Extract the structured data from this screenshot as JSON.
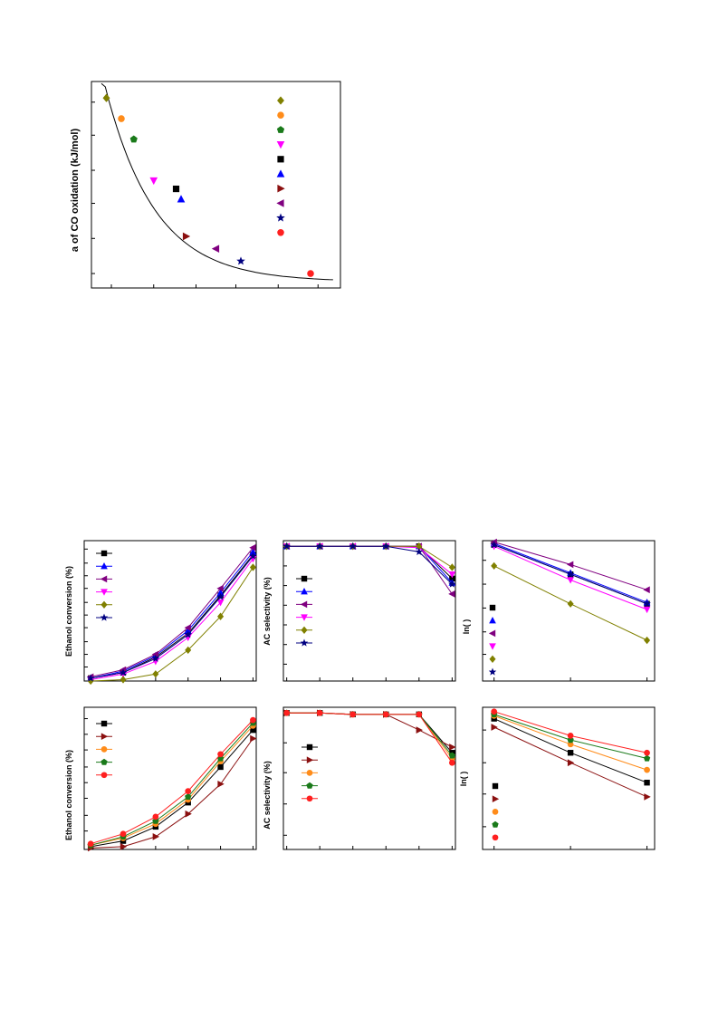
{
  "chart_data": [
    {
      "id": "top",
      "type": "scatter",
      "ylabel": "a of CO oxidation (kJ/mol)",
      "xlim": [
        0,
        1
      ],
      "ylim": [
        0,
        1
      ],
      "xticks": [
        0.08,
        0.25,
        0.42,
        0.58,
        0.75,
        0.91
      ],
      "yticks": [
        0.07,
        0.24,
        0.41,
        0.57,
        0.74,
        0.9
      ],
      "fit_curve": true,
      "points": [
        {
          "x": 0.06,
          "y": 0.92,
          "marker": "diamond",
          "color": "#808000"
        },
        {
          "x": 0.12,
          "y": 0.82,
          "marker": "circle",
          "color": "#ff8c1a"
        },
        {
          "x": 0.17,
          "y": 0.72,
          "marker": "pentagon",
          "color": "#1a7a1a"
        },
        {
          "x": 0.25,
          "y": 0.52,
          "marker": "triangle-down",
          "color": "#ff00ff"
        },
        {
          "x": 0.34,
          "y": 0.48,
          "marker": "square",
          "color": "#000000"
        },
        {
          "x": 0.36,
          "y": 0.43,
          "marker": "triangle-up",
          "color": "#0000ff"
        },
        {
          "x": 0.38,
          "y": 0.25,
          "marker": "triangle-right",
          "color": "#8b1010"
        },
        {
          "x": 0.5,
          "y": 0.19,
          "marker": "triangle-left",
          "color": "#800080"
        },
        {
          "x": 0.6,
          "y": 0.13,
          "marker": "star",
          "color": "#000080"
        },
        {
          "x": 0.88,
          "y": 0.07,
          "marker": "circle",
          "color": "#ff2020"
        }
      ],
      "legend_markers": [
        {
          "marker": "diamond",
          "color": "#808000"
        },
        {
          "marker": "circle",
          "color": "#ff8c1a"
        },
        {
          "marker": "pentagon",
          "color": "#1a7a1a"
        },
        {
          "marker": "triangle-down",
          "color": "#ff00ff"
        },
        {
          "marker": "square",
          "color": "#000000"
        },
        {
          "marker": "triangle-up",
          "color": "#0000ff"
        },
        {
          "marker": "triangle-right",
          "color": "#8b1010"
        },
        {
          "marker": "triangle-left",
          "color": "#800080"
        },
        {
          "marker": "star",
          "color": "#000080"
        },
        {
          "marker": "circle",
          "color": "#ff2020"
        }
      ]
    },
    {
      "id": "conv_a",
      "type": "line",
      "ylabel": "Ethanol conversion (%)",
      "x": [
        1,
        2,
        3,
        4,
        5,
        6
      ],
      "xlim": [
        0.8,
        6.1
      ],
      "ylim": [
        0,
        1
      ],
      "yticks": [
        0.1,
        0.19,
        0.28,
        0.38,
        0.47,
        0.56,
        0.66,
        0.75,
        0.84,
        0.94
      ],
      "series": [
        {
          "marker": "square",
          "color": "#000000",
          "values": [
            0.02,
            0.06,
            0.17,
            0.34,
            0.61,
            0.9
          ]
        },
        {
          "marker": "triangle-up",
          "color": "#0000ff",
          "values": [
            0.02,
            0.07,
            0.18,
            0.36,
            0.63,
            0.92
          ]
        },
        {
          "marker": "triangle-left",
          "color": "#800080",
          "values": [
            0.03,
            0.08,
            0.19,
            0.38,
            0.66,
            0.95
          ]
        },
        {
          "marker": "triangle-down",
          "color": "#ff00ff",
          "values": [
            0.01,
            0.05,
            0.14,
            0.31,
            0.56,
            0.87
          ]
        },
        {
          "marker": "diamond",
          "color": "#808000",
          "values": [
            0.0,
            0.01,
            0.05,
            0.22,
            0.46,
            0.81
          ]
        },
        {
          "marker": "star",
          "color": "#000080",
          "values": [
            0.02,
            0.06,
            0.16,
            0.33,
            0.6,
            0.89
          ]
        }
      ]
    },
    {
      "id": "sel_a",
      "type": "line",
      "ylabel": "AC selectivity (%)",
      "x": [
        1,
        2,
        3,
        4,
        5,
        6
      ],
      "xlim": [
        0.9,
        6.1
      ],
      "ylim": [
        0,
        1
      ],
      "yticks": [
        0.12,
        0.26,
        0.4,
        0.54,
        0.68,
        0.82,
        0.96
      ],
      "series": [
        {
          "marker": "square",
          "color": "#000000",
          "values": [
            0.96,
            0.96,
            0.96,
            0.96,
            0.96,
            0.73
          ]
        },
        {
          "marker": "triangle-up",
          "color": "#0000ff",
          "values": [
            0.96,
            0.96,
            0.96,
            0.96,
            0.96,
            0.7
          ]
        },
        {
          "marker": "triangle-left",
          "color": "#800080",
          "values": [
            0.96,
            0.96,
            0.96,
            0.96,
            0.96,
            0.62
          ]
        },
        {
          "marker": "triangle-down",
          "color": "#ff00ff",
          "values": [
            0.96,
            0.96,
            0.96,
            0.96,
            0.95,
            0.76
          ]
        },
        {
          "marker": "diamond",
          "color": "#808000",
          "values": [
            0.96,
            0.96,
            0.96,
            0.96,
            0.96,
            0.81
          ]
        },
        {
          "marker": "star",
          "color": "#000080",
          "values": [
            0.96,
            0.96,
            0.96,
            0.96,
            0.92,
            0.69
          ]
        }
      ]
    },
    {
      "id": "arr_a",
      "type": "line",
      "ylabel": "ln(  )",
      "x": [
        1,
        2,
        3
      ],
      "xlim": [
        0.85,
        3.1
      ],
      "ylim": [
        0,
        1
      ],
      "yticks": [
        0.19,
        0.35,
        0.52,
        0.69,
        0.86
      ],
      "series": [
        {
          "marker": "square",
          "color": "#000000",
          "values": [
            0.97,
            0.76,
            0.55
          ]
        },
        {
          "marker": "triangle-up",
          "color": "#0000ff",
          "values": [
            0.98,
            0.77,
            0.56
          ]
        },
        {
          "marker": "triangle-left",
          "color": "#800080",
          "values": [
            0.99,
            0.83,
            0.65
          ]
        },
        {
          "marker": "triangle-down",
          "color": "#ff00ff",
          "values": [
            0.96,
            0.72,
            0.51
          ]
        },
        {
          "marker": "diamond",
          "color": "#808000",
          "values": [
            0.82,
            0.55,
            0.29
          ]
        },
        {
          "marker": "star",
          "color": "#000080",
          "values": [
            0.97,
            0.76,
            0.55
          ]
        }
      ]
    },
    {
      "id": "conv_b",
      "type": "line",
      "ylabel": "Ethanol conversion (%)",
      "x": [
        1,
        2,
        3,
        4,
        5,
        6
      ],
      "xlim": [
        0.8,
        6.1
      ],
      "ylim": [
        0,
        1
      ],
      "yticks": [
        0.13,
        0.24,
        0.36,
        0.47,
        0.58,
        0.7,
        0.81,
        0.92
      ],
      "series": [
        {
          "marker": "square",
          "color": "#000000",
          "values": [
            0.02,
            0.06,
            0.16,
            0.33,
            0.58,
            0.84
          ]
        },
        {
          "marker": "triangle-right",
          "color": "#8b1010",
          "values": [
            0.01,
            0.02,
            0.09,
            0.25,
            0.46,
            0.78
          ]
        },
        {
          "marker": "circle",
          "color": "#ff8c1a",
          "values": [
            0.03,
            0.08,
            0.18,
            0.35,
            0.62,
            0.87
          ]
        },
        {
          "marker": "pentagon",
          "color": "#1a7a1a",
          "values": [
            0.03,
            0.09,
            0.2,
            0.37,
            0.64,
            0.89
          ]
        },
        {
          "marker": "circle",
          "color": "#ff2020",
          "values": [
            0.04,
            0.11,
            0.23,
            0.41,
            0.67,
            0.91
          ]
        }
      ]
    },
    {
      "id": "sel_b",
      "type": "line",
      "ylabel": "AC selectivity (%)",
      "x": [
        1,
        2,
        3,
        4,
        5,
        6
      ],
      "xlim": [
        0.9,
        6.1
      ],
      "ylim": [
        0,
        1
      ],
      "yticks": [
        0.1,
        0.32,
        0.54,
        0.75,
        0.96
      ],
      "series": [
        {
          "marker": "square",
          "color": "#000000",
          "values": [
            0.96,
            0.96,
            0.95,
            0.95,
            0.95,
            0.68
          ]
        },
        {
          "marker": "triangle-right",
          "color": "#8b1010",
          "values": [
            0.96,
            0.96,
            0.95,
            0.95,
            0.84,
            0.72
          ]
        },
        {
          "marker": "circle",
          "color": "#ff8c1a",
          "values": [
            0.96,
            0.96,
            0.95,
            0.95,
            0.95,
            0.64
          ]
        },
        {
          "marker": "pentagon",
          "color": "#1a7a1a",
          "values": [
            0.96,
            0.96,
            0.95,
            0.95,
            0.95,
            0.66
          ]
        },
        {
          "marker": "circle",
          "color": "#ff2020",
          "values": [
            0.96,
            0.96,
            0.95,
            0.95,
            0.95,
            0.61
          ]
        }
      ]
    },
    {
      "id": "arr_b",
      "type": "line",
      "ylabel": "ln(  )",
      "x": [
        1,
        2,
        3
      ],
      "xlim": [
        0.85,
        3.1
      ],
      "ylim": [
        0,
        1
      ],
      "yticks": [
        0.16,
        0.39,
        0.61,
        0.84
      ],
      "series": [
        {
          "marker": "square",
          "color": "#000000",
          "values": [
            0.92,
            0.68,
            0.47
          ]
        },
        {
          "marker": "triangle-right",
          "color": "#8b1010",
          "values": [
            0.86,
            0.61,
            0.37
          ]
        },
        {
          "marker": "circle",
          "color": "#ff8c1a",
          "values": [
            0.94,
            0.74,
            0.56
          ]
        },
        {
          "marker": "pentagon",
          "color": "#1a7a1a",
          "values": [
            0.95,
            0.77,
            0.64
          ]
        },
        {
          "marker": "circle",
          "color": "#ff2020",
          "values": [
            0.97,
            0.8,
            0.68
          ]
        }
      ]
    }
  ]
}
